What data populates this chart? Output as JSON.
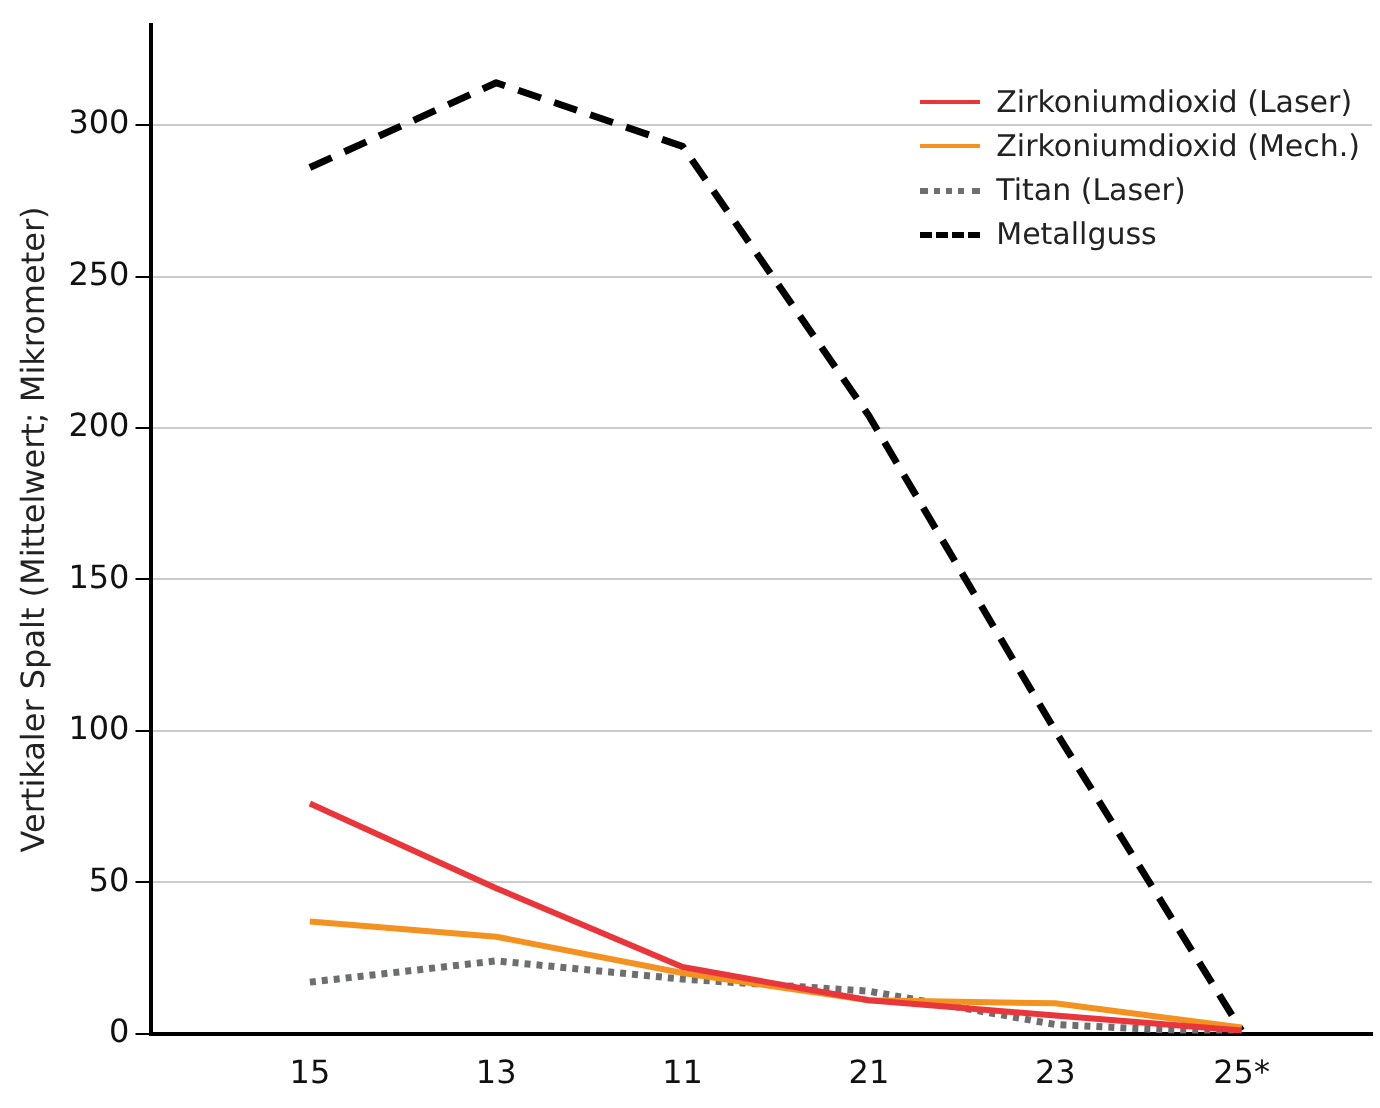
{
  "chart_data": {
    "type": "line",
    "ylabel": "Vertikaler Spalt (Mittelwert; Mikrometer)",
    "categories": [
      "15",
      "13",
      "11",
      "21",
      "23",
      "25*"
    ],
    "series": [
      {
        "name": "Zirkoniumdioxid (Laser)",
        "color": "#e8363a",
        "line_style": "solid",
        "values": [
          76,
          48,
          22,
          11,
          6,
          1
        ]
      },
      {
        "name": "Zirkoniumdioxid (Mech.)",
        "color": "#f39220",
        "line_style": "solid",
        "values": [
          37,
          32,
          20,
          11,
          10,
          2
        ]
      },
      {
        "name": "Titan (Laser)",
        "color": "#6d6e70",
        "line_style": "dotted",
        "values": [
          17,
          24,
          18,
          14,
          3,
          0
        ]
      },
      {
        "name": "Metallguss",
        "color": "#000000",
        "line_style": "dashed",
        "values": [
          286,
          314,
          293,
          204,
          100,
          1
        ]
      }
    ],
    "ylim": [
      0,
      333
    ],
    "yticks": [
      0,
      50,
      100,
      150,
      200,
      250,
      300
    ],
    "grid": "y",
    "legend": "top right",
    "marker": "none"
  }
}
